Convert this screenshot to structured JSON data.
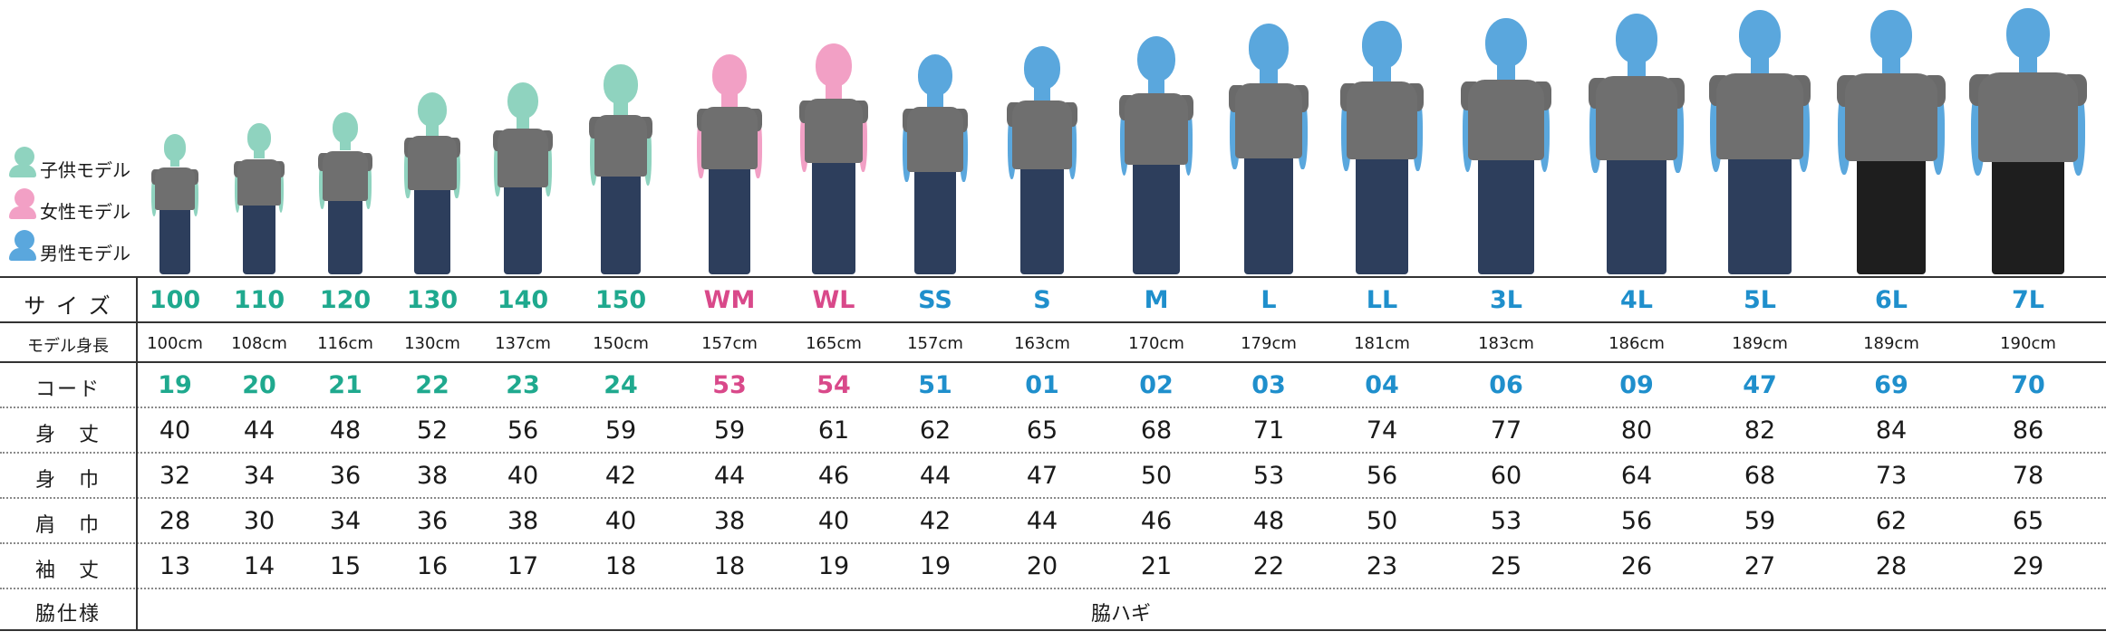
{
  "legend": [
    {
      "label": "子供モデル",
      "color": "#8fd3bf"
    },
    {
      "label": "女性モデル",
      "color": "#f2a0c5"
    },
    {
      "label": "男性モデル",
      "color": "#5aa7dd"
    }
  ],
  "row_labels": {
    "size": "サ イ ズ",
    "height": "モデル身長",
    "code": "コード",
    "body_length": "身　丈",
    "body_width": "身　巾",
    "shoulder": "肩　巾",
    "sleeve": "袖　丈",
    "side": "脇仕様"
  },
  "side_spec": "脇ハギ",
  "columns": [
    {
      "size": "100",
      "group": "kids",
      "height": "100cm",
      "code": "19",
      "body_length": "40",
      "body_width": "32",
      "shoulder": "28",
      "sleeve": "13"
    },
    {
      "size": "110",
      "group": "kids",
      "height": "108cm",
      "code": "20",
      "body_length": "44",
      "body_width": "34",
      "shoulder": "30",
      "sleeve": "14"
    },
    {
      "size": "120",
      "group": "kids",
      "height": "116cm",
      "code": "21",
      "body_length": "48",
      "body_width": "36",
      "shoulder": "34",
      "sleeve": "15"
    },
    {
      "size": "130",
      "group": "kids",
      "height": "130cm",
      "code": "22",
      "body_length": "52",
      "body_width": "38",
      "shoulder": "36",
      "sleeve": "16"
    },
    {
      "size": "140",
      "group": "kids",
      "height": "137cm",
      "code": "23",
      "body_length": "56",
      "body_width": "40",
      "shoulder": "38",
      "sleeve": "17"
    },
    {
      "size": "150",
      "group": "kids",
      "height": "150cm",
      "code": "24",
      "body_length": "59",
      "body_width": "42",
      "shoulder": "40",
      "sleeve": "18"
    },
    {
      "size": "WM",
      "group": "women",
      "height": "157cm",
      "code": "53",
      "body_length": "59",
      "body_width": "44",
      "shoulder": "38",
      "sleeve": "18"
    },
    {
      "size": "WL",
      "group": "women",
      "height": "165cm",
      "code": "54",
      "body_length": "61",
      "body_width": "46",
      "shoulder": "40",
      "sleeve": "19"
    },
    {
      "size": "SS",
      "group": "men",
      "height": "157cm",
      "code": "51",
      "body_length": "62",
      "body_width": "44",
      "shoulder": "42",
      "sleeve": "19"
    },
    {
      "size": "S",
      "group": "men",
      "height": "163cm",
      "code": "01",
      "body_length": "65",
      "body_width": "47",
      "shoulder": "44",
      "sleeve": "20"
    },
    {
      "size": "M",
      "group": "men",
      "height": "170cm",
      "code": "02",
      "body_length": "68",
      "body_width": "50",
      "shoulder": "46",
      "sleeve": "21"
    },
    {
      "size": "L",
      "group": "men",
      "height": "179cm",
      "code": "03",
      "body_length": "71",
      "body_width": "53",
      "shoulder": "48",
      "sleeve": "22"
    },
    {
      "size": "LL",
      "group": "men",
      "height": "181cm",
      "code": "04",
      "body_length": "74",
      "body_width": "56",
      "shoulder": "50",
      "sleeve": "23"
    },
    {
      "size": "3L",
      "group": "men",
      "height": "183cm",
      "code": "06",
      "body_length": "77",
      "body_width": "60",
      "shoulder": "53",
      "sleeve": "25"
    },
    {
      "size": "4L",
      "group": "men",
      "height": "186cm",
      "code": "09",
      "body_length": "80",
      "body_width": "64",
      "shoulder": "56",
      "sleeve": "26"
    },
    {
      "size": "5L",
      "group": "men",
      "height": "189cm",
      "code": "47",
      "body_length": "82",
      "body_width": "68",
      "shoulder": "59",
      "sleeve": "27"
    },
    {
      "size": "6L",
      "group": "men",
      "height": "189cm",
      "code": "69",
      "body_length": "84",
      "body_width": "73",
      "shoulder": "62",
      "sleeve": "28"
    },
    {
      "size": "7L",
      "group": "men",
      "height": "190cm",
      "code": "70",
      "body_length": "86",
      "body_width": "78",
      "shoulder": "65",
      "sleeve": "29"
    }
  ],
  "colors": {
    "kids": "#1fa98e",
    "women": "#d9498a",
    "men": "#1f8fcc",
    "shirt": "#6f6f6f",
    "pants": "#2d3e5c"
  }
}
